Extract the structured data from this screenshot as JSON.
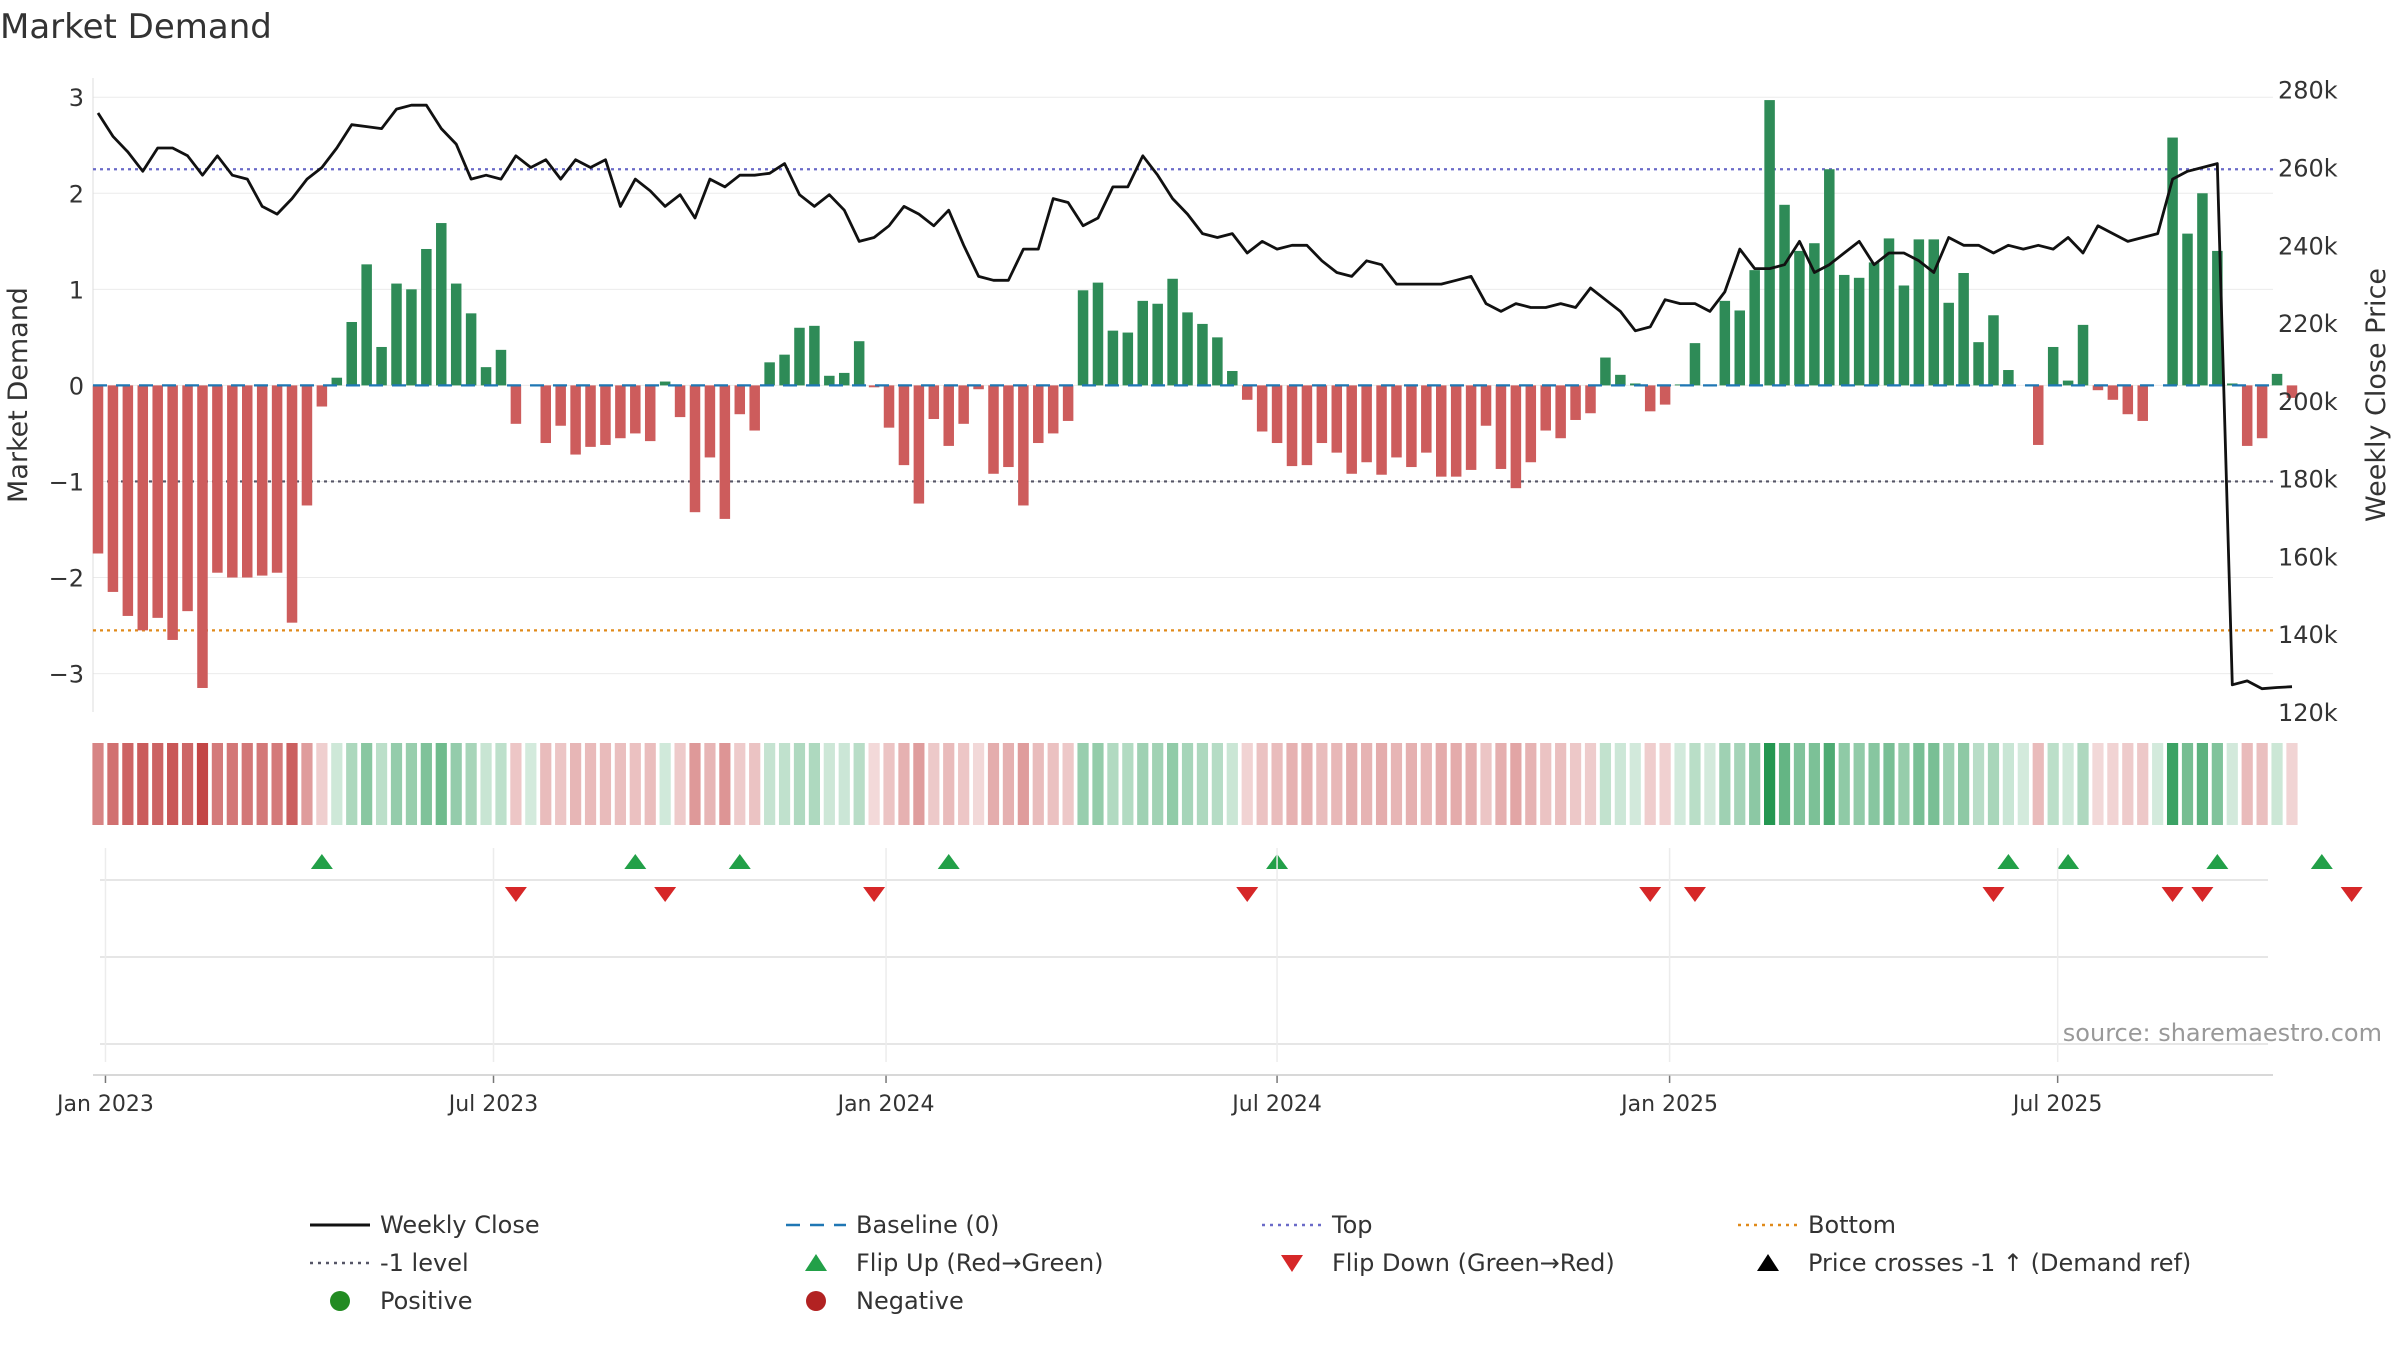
{
  "chart_data": {
    "type": "bar",
    "title": "Market Demand",
    "ylabel_left": "Market Demand",
    "ylabel_right": "Weekly Close Price",
    "source": "source: sharemaestro.com",
    "ylim_left": [
      -3.4,
      3.2
    ],
    "ylim_right": [
      120000,
      283000
    ],
    "yticks_left": [
      {
        "value": 3,
        "label": "3"
      },
      {
        "value": 2,
        "label": "2"
      },
      {
        "value": 1,
        "label": "1"
      },
      {
        "value": 0,
        "label": "0"
      },
      {
        "value": -1,
        "label": "−1"
      },
      {
        "value": -2,
        "label": "−2"
      },
      {
        "value": -3,
        "label": "−3"
      }
    ],
    "yticks_right": [
      {
        "value": 280000,
        "label": "280k"
      },
      {
        "value": 260000,
        "label": "260k"
      },
      {
        "value": 240000,
        "label": "240k"
      },
      {
        "value": 220000,
        "label": "220k"
      },
      {
        "value": 200000,
        "label": "200k"
      },
      {
        "value": 180000,
        "label": "180k"
      },
      {
        "value": 160000,
        "label": "160k"
      },
      {
        "value": 140000,
        "label": "140k"
      },
      {
        "value": 120000,
        "label": "120k"
      }
    ],
    "xticks": [
      {
        "week": 0.5,
        "label": "Jan 2023"
      },
      {
        "week": 26.5,
        "label": "Jul 2023"
      },
      {
        "week": 52.8,
        "label": "Jan 2024"
      },
      {
        "week": 79,
        "label": "Jul 2024"
      },
      {
        "week": 105.3,
        "label": "Jan 2025"
      },
      {
        "week": 131.3,
        "label": "Jul 2025"
      }
    ],
    "reference_lines": [
      {
        "name": "Top",
        "value": 2.25,
        "color": "#6a6ac8",
        "dash": "3,4"
      },
      {
        "name": "-1 level",
        "value": -1,
        "color": "#555566",
        "dash": "3,4"
      },
      {
        "name": "Bottom",
        "value": -2.55,
        "color": "#e08a1a",
        "dash": "3,4"
      }
    ],
    "series": [
      {
        "name": "Market Demand",
        "positive_color": "#2e8b57",
        "negative_color": "#cd5c5c",
        "values": [
          -1.75,
          -2.15,
          -2.4,
          -2.55,
          -2.42,
          -2.65,
          -2.35,
          -3.15,
          -1.95,
          -2.0,
          -2.0,
          -1.98,
          -1.95,
          -2.47,
          -1.25,
          -0.22,
          0.08,
          0.66,
          1.26,
          0.4,
          1.06,
          1.0,
          1.42,
          1.69,
          1.06,
          0.75,
          0.19,
          0.37,
          -0.4,
          0,
          -0.6,
          -0.42,
          -0.72,
          -0.64,
          -0.62,
          -0.55,
          -0.5,
          -0.58,
          0.04,
          -0.33,
          -1.32,
          -0.75,
          -1.39,
          -0.3,
          -0.47,
          0.24,
          0.32,
          0.6,
          0.62,
          0.1,
          0.13,
          0.46,
          -0.02,
          -0.44,
          -0.83,
          -1.23,
          -0.35,
          -0.63,
          -0.4,
          -0.04,
          -0.92,
          -0.85,
          -1.25,
          -0.6,
          -0.5,
          -0.37,
          0.99,
          1.07,
          0.57,
          0.55,
          0.88,
          0.85,
          1.11,
          0.76,
          0.64,
          0.5,
          0.15,
          -0.15,
          -0.48,
          -0.6,
          -0.84,
          -0.83,
          -0.6,
          -0.7,
          -0.92,
          -0.8,
          -0.93,
          -0.75,
          -0.85,
          -0.7,
          -0.95,
          -0.95,
          -0.88,
          -0.42,
          -0.87,
          -1.07,
          -0.8,
          -0.47,
          -0.55,
          -0.36,
          -0.29,
          0.29,
          0.11,
          0.02,
          -0.27,
          -0.2,
          0.01,
          0.44,
          0,
          0.88,
          0.78,
          1.2,
          2.97,
          1.88,
          1.4,
          1.48,
          2.25,
          1.15,
          1.12,
          1.28,
          1.53,
          1.04,
          1.52,
          1.52,
          0.86,
          1.17,
          0.45,
          0.73,
          0.16,
          0,
          -0.62,
          0.4,
          0.05,
          0.63,
          -0.05,
          -0.15,
          -0.3,
          -0.37,
          0,
          2.58,
          1.58,
          2.0,
          1.4,
          0.02,
          -0.63,
          -0.55,
          0.12,
          -0.13
        ]
      },
      {
        "name": "Weekly Close",
        "color": "#111111",
        "values": [
          274000,
          268000,
          264000,
          259000,
          265000,
          265000,
          263000,
          258000,
          263000,
          258000,
          257000,
          250000,
          248000,
          252000,
          257000,
          260000,
          265000,
          271000,
          270500,
          270000,
          275000,
          276000,
          276000,
          270000,
          266000,
          257000,
          258000,
          257000,
          263000,
          260000,
          262000,
          257000,
          262000,
          260000,
          262000,
          250000,
          257000,
          254000,
          250000,
          253000,
          247000,
          257000,
          255000,
          258000,
          258000,
          258500,
          261000,
          253000,
          250000,
          253000,
          249000,
          241000,
          242000,
          245000,
          250000,
          248000,
          245000,
          249000,
          240000,
          232000,
          231000,
          231000,
          239000,
          239000,
          252000,
          251000,
          245000,
          247000,
          255000,
          255000,
          263000,
          258000,
          252000,
          248000,
          243000,
          242000,
          243000,
          238000,
          241000,
          239000,
          240000,
          240000,
          236000,
          233000,
          232000,
          236000,
          235000,
          230000,
          230000,
          230000,
          230000,
          231000,
          232000,
          225000,
          223000,
          225000,
          224000,
          224000,
          225000,
          224000,
          229000,
          226000,
          223000,
          218000,
          219000,
          226000,
          225000,
          225000,
          223000,
          228000,
          239000,
          234000,
          234000,
          235000,
          241000,
          233000,
          235000,
          238000,
          241000,
          235000,
          238000,
          238000,
          236000,
          233000,
          242000,
          240000,
          240000,
          238000,
          240000,
          239000,
          240000,
          239000,
          242000,
          238000,
          245000,
          243000,
          241000,
          242000,
          243000,
          257000,
          259000,
          260000,
          261000,
          127000,
          128000,
          126000,
          126300,
          126500
        ]
      }
    ],
    "flip_up_weeks": [
      15,
      36,
      43,
      57,
      79,
      128,
      132,
      142,
      149
    ],
    "flip_down_weeks": [
      28,
      38,
      52,
      77,
      104,
      107,
      127,
      139,
      141,
      151
    ],
    "legend": [
      {
        "label": "Weekly Close",
        "marker": "line",
        "color": "#111111"
      },
      {
        "label": "Baseline (0)",
        "marker": "dash-line",
        "color": "#1f77b4"
      },
      {
        "label": "Top",
        "marker": "dot-line",
        "color": "#6a6ac8"
      },
      {
        "label": "Bottom",
        "marker": "dot-line",
        "color": "#e08a1a"
      },
      {
        "label": "-1 level",
        "marker": "dot-line",
        "color": "#555566"
      },
      {
        "label": "Flip Up (Red→Green)",
        "marker": "triangle-up",
        "color": "#22a048"
      },
      {
        "label": "Flip Down (Green→Red)",
        "marker": "triangle-down",
        "color": "#d62728"
      },
      {
        "label": "Price crosses -1 ↑ (Demand ref)",
        "marker": "triangle-up",
        "color": "#000000"
      },
      {
        "label": "Positive",
        "marker": "circle",
        "color": "#228b22"
      },
      {
        "label": "Negative",
        "marker": "circle",
        "color": "#b22222"
      }
    ],
    "legend_placement": "bottom"
  }
}
